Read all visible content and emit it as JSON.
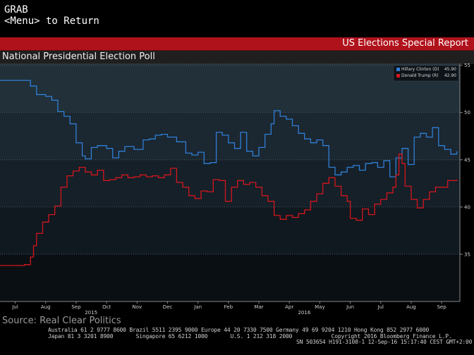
{
  "terminal": {
    "line1": "GRAB",
    "line2": "<Menu> to Return"
  },
  "header": {
    "report_title": "US Elections Special Report",
    "chart_title": "National Presidential Election Poll"
  },
  "source": "Source: Real Clear Politics",
  "footer": {
    "line1": "Australia 61 2 9777 8600 Brazil 5511 2395 9000 Europe 44 20 7330 7500 Germany 49 69 9204 1210 Hong Kong 852 2977 6000",
    "line2a": "Japan 81 3 3201 8900       Singapore 65 6212 1000       U.S. 1 212 318 2000            Copyright 2016 Bloomberg Finance L.P.",
    "line2b": "SN 503654 H191-3108-1 12-Sep-16 15:17:40 CEST GMT+2:00"
  },
  "colors": {
    "clinton": "#2f7fd6",
    "trump": "#d4161d",
    "accent": "#b0121b"
  },
  "chart_data": {
    "type": "line",
    "title": "National Presidential Election Poll",
    "xlabel": "",
    "ylabel": "",
    "x_tick_labels": [
      "Jul",
      "Aug",
      "Sep",
      "Oct",
      "Nov",
      "Dec",
      "Jan",
      "Feb",
      "Mar",
      "Apr",
      "May",
      "Jun",
      "Jul",
      "Aug",
      "Sep"
    ],
    "x_year_labels": [
      {
        "label": "2015",
        "month_index": 3
      },
      {
        "label": "2016",
        "month_index": 10
      }
    ],
    "y_ticks": [
      35,
      40,
      45,
      50,
      55
    ],
    "ylim": [
      30,
      55.2
    ],
    "xlim": [
      0,
      14.6
    ],
    "grid": true,
    "legend_position": "top-right",
    "series": [
      {
        "name": "Hillary Clinton (D)",
        "last_value": "45.90",
        "color": "#2f7fd6",
        "points": [
          [
            -0.5,
            53.4
          ],
          [
            0.3,
            53.4
          ],
          [
            0.5,
            52.8
          ],
          [
            0.7,
            51.9
          ],
          [
            1.0,
            51.7
          ],
          [
            1.2,
            51.3
          ],
          [
            1.4,
            50.1
          ],
          [
            1.6,
            49.6
          ],
          [
            1.8,
            48.8
          ],
          [
            2.0,
            46.8
          ],
          [
            2.2,
            45.4
          ],
          [
            2.3,
            45.1
          ],
          [
            2.5,
            46.3
          ],
          [
            2.7,
            46.5
          ],
          [
            3.0,
            46.2
          ],
          [
            3.2,
            45.2
          ],
          [
            3.4,
            45.9
          ],
          [
            3.6,
            46.4
          ],
          [
            3.9,
            46.1
          ],
          [
            4.2,
            47.1
          ],
          [
            4.4,
            47.2
          ],
          [
            4.6,
            47.6
          ],
          [
            4.8,
            47.7
          ],
          [
            5.0,
            47.4
          ],
          [
            5.3,
            46.9
          ],
          [
            5.6,
            45.7
          ],
          [
            5.8,
            45.5
          ],
          [
            6.0,
            45.8
          ],
          [
            6.2,
            44.6
          ],
          [
            6.4,
            44.7
          ],
          [
            6.6,
            47.9
          ],
          [
            6.8,
            47.6
          ],
          [
            7.0,
            46.8
          ],
          [
            7.2,
            46.2
          ],
          [
            7.4,
            47.9
          ],
          [
            7.6,
            45.9
          ],
          [
            7.8,
            45.4
          ],
          [
            8.0,
            46.3
          ],
          [
            8.2,
            47.7
          ],
          [
            8.4,
            48.8
          ],
          [
            8.5,
            50.2
          ],
          [
            8.7,
            49.6
          ],
          [
            8.9,
            49.3
          ],
          [
            9.1,
            48.6
          ],
          [
            9.3,
            47.8
          ],
          [
            9.5,
            47.2
          ],
          [
            9.7,
            46.8
          ],
          [
            9.9,
            47.1
          ],
          [
            10.1,
            46.5
          ],
          [
            10.3,
            44.2
          ],
          [
            10.5,
            43.4
          ],
          [
            10.7,
            43.7
          ],
          [
            10.9,
            44.2
          ],
          [
            11.1,
            44.4
          ],
          [
            11.3,
            43.9
          ],
          [
            11.5,
            44.6
          ],
          [
            11.7,
            44.7
          ],
          [
            11.9,
            44.2
          ],
          [
            12.1,
            44.9
          ],
          [
            12.3,
            43.2
          ],
          [
            12.5,
            45.2
          ],
          [
            12.7,
            46.2
          ],
          [
            12.9,
            44.5
          ],
          [
            13.1,
            47.4
          ],
          [
            13.3,
            47.8
          ],
          [
            13.5,
            47.4
          ],
          [
            13.7,
            48.4
          ],
          [
            13.9,
            46.5
          ],
          [
            14.1,
            46.1
          ],
          [
            14.3,
            45.6
          ],
          [
            14.5,
            45.9
          ]
        ]
      },
      {
        "name": "Donald Trump (R)",
        "last_value": "42.90",
        "color": "#d4161d",
        "points": [
          [
            -0.5,
            33.8
          ],
          [
            0.3,
            33.9
          ],
          [
            0.5,
            34.7
          ],
          [
            0.6,
            35.9
          ],
          [
            0.7,
            37.2
          ],
          [
            0.9,
            38.4
          ],
          [
            1.1,
            39.2
          ],
          [
            1.3,
            40.1
          ],
          [
            1.5,
            42.1
          ],
          [
            1.7,
            43.3
          ],
          [
            1.9,
            43.8
          ],
          [
            2.1,
            44.2
          ],
          [
            2.3,
            43.7
          ],
          [
            2.5,
            43.4
          ],
          [
            2.7,
            43.9
          ],
          [
            2.9,
            42.8
          ],
          [
            3.1,
            42.9
          ],
          [
            3.3,
            43.1
          ],
          [
            3.5,
            43.4
          ],
          [
            3.7,
            43.1
          ],
          [
            3.9,
            43.2
          ],
          [
            4.1,
            43.4
          ],
          [
            4.3,
            43.2
          ],
          [
            4.5,
            43.3
          ],
          [
            4.7,
            43.1
          ],
          [
            4.9,
            43.4
          ],
          [
            5.1,
            44.1
          ],
          [
            5.3,
            42.6
          ],
          [
            5.5,
            42.1
          ],
          [
            5.7,
            41.2
          ],
          [
            5.9,
            40.9
          ],
          [
            6.1,
            41.7
          ],
          [
            6.3,
            41.6
          ],
          [
            6.5,
            42.9
          ],
          [
            6.7,
            42.8
          ],
          [
            6.9,
            40.6
          ],
          [
            7.1,
            42.1
          ],
          [
            7.3,
            42.8
          ],
          [
            7.5,
            42.4
          ],
          [
            7.7,
            42.6
          ],
          [
            7.9,
            42.1
          ],
          [
            8.1,
            41.2
          ],
          [
            8.3,
            40.6
          ],
          [
            8.5,
            39.1
          ],
          [
            8.7,
            38.7
          ],
          [
            8.9,
            39.1
          ],
          [
            9.1,
            38.9
          ],
          [
            9.3,
            39.3
          ],
          [
            9.5,
            39.7
          ],
          [
            9.7,
            40.6
          ],
          [
            9.9,
            41.4
          ],
          [
            10.1,
            42.5
          ],
          [
            10.3,
            43.1
          ],
          [
            10.5,
            42.2
          ],
          [
            10.7,
            41.2
          ],
          [
            10.9,
            40.6
          ],
          [
            11.0,
            38.8
          ],
          [
            11.2,
            38.6
          ],
          [
            11.4,
            39.8
          ],
          [
            11.6,
            39.2
          ],
          [
            11.8,
            40.3
          ],
          [
            12.0,
            40.8
          ],
          [
            12.2,
            41.5
          ],
          [
            12.4,
            42.1
          ],
          [
            12.5,
            43.4
          ],
          [
            12.6,
            45.6
          ],
          [
            12.7,
            44.6
          ],
          [
            12.8,
            42.2
          ],
          [
            13.0,
            40.8
          ],
          [
            13.2,
            39.9
          ],
          [
            13.4,
            40.8
          ],
          [
            13.6,
            41.6
          ],
          [
            13.8,
            42.1
          ],
          [
            14.0,
            42.1
          ],
          [
            14.2,
            42.8
          ],
          [
            14.5,
            42.9
          ]
        ]
      }
    ]
  }
}
